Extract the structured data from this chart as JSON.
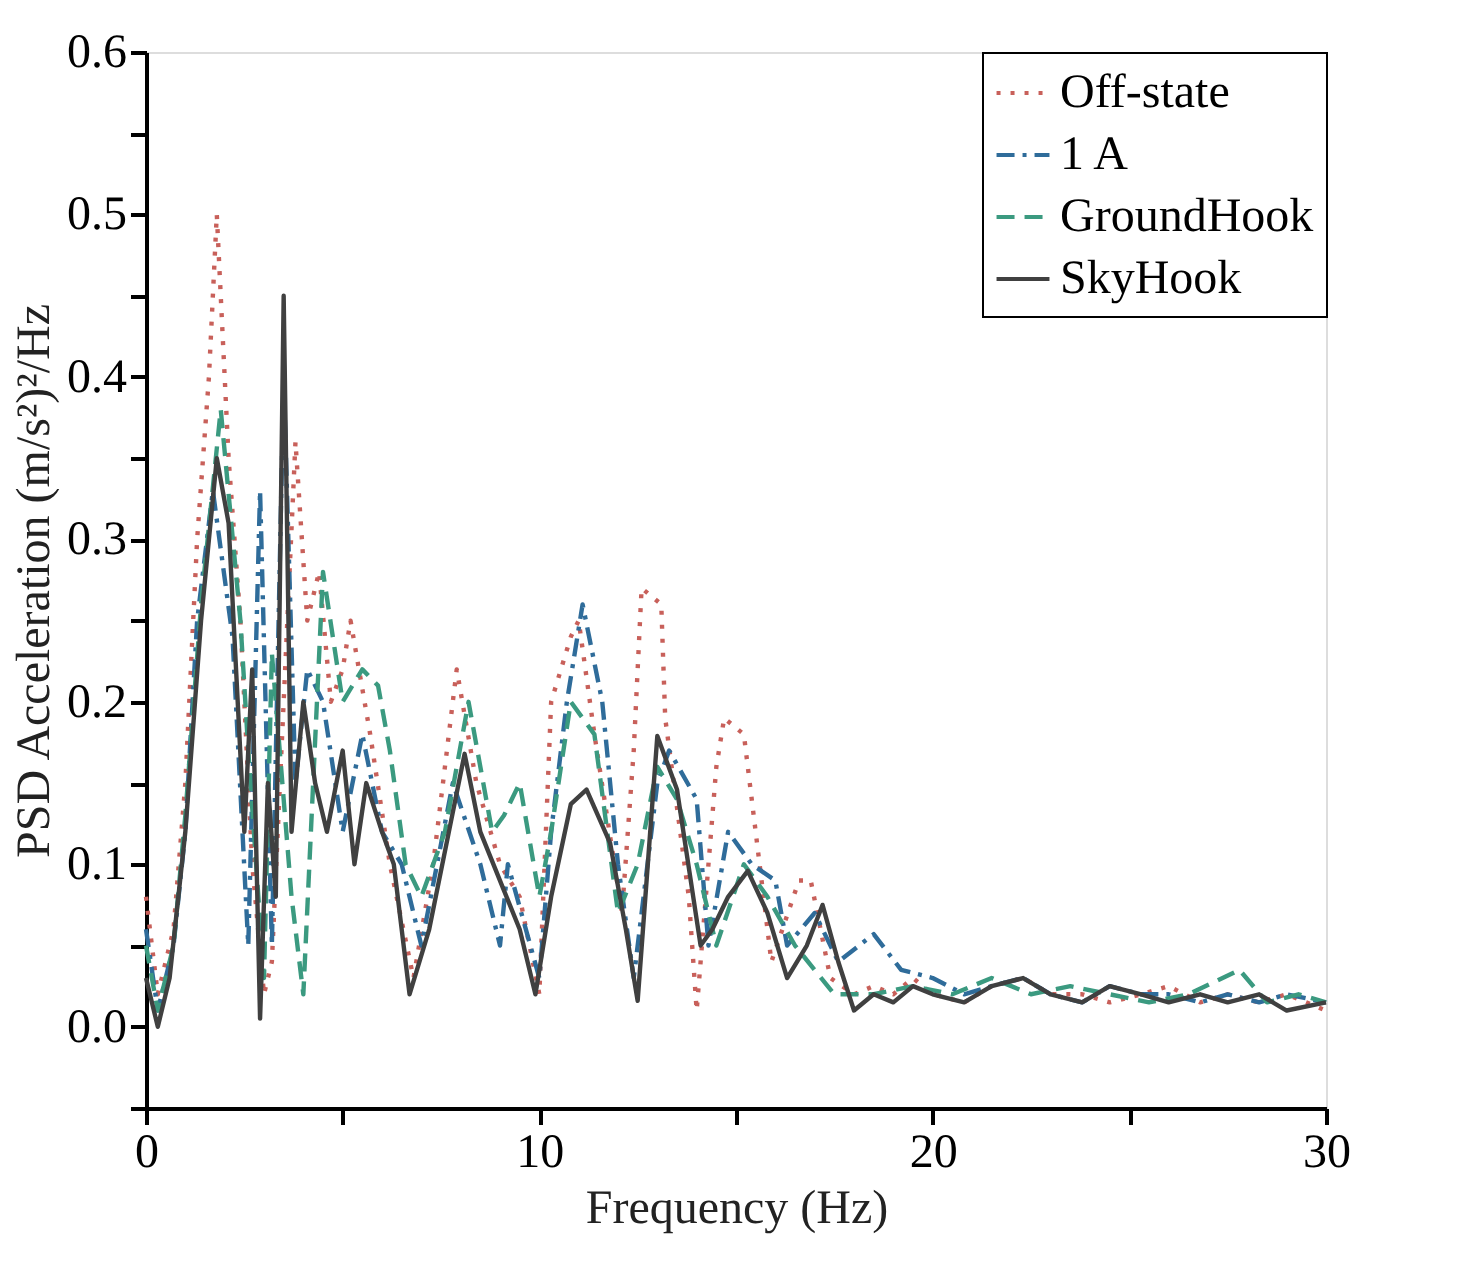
{
  "chart_data": {
    "type": "line",
    "xlabel": "Frequency (Hz)",
    "ylabel": "PSD Acceleration (m/s²)²/Hz",
    "xlim": [
      0,
      30
    ],
    "xticks": [
      0,
      {
        "value": 5,
        "label": null
      },
      10,
      {
        "value": 15,
        "label": null
      },
      20,
      {
        "value": 25,
        "label": null
      },
      30
    ],
    "ylim": [
      -0.05,
      0.6
    ],
    "yticks": [
      {
        "value": -0.05,
        "label": null
      },
      {
        "value": 0,
        "label": "0.0"
      },
      {
        "value": 0.05,
        "label": null
      },
      {
        "value": 0.1,
        "label": "0.1"
      },
      {
        "value": 0.15,
        "label": null
      },
      {
        "value": 0.2,
        "label": "0.2"
      },
      {
        "value": 0.25,
        "label": null
      },
      {
        "value": 0.3,
        "label": "0.3"
      },
      {
        "value": 0.35,
        "label": null
      },
      {
        "value": 0.4,
        "label": "0.4"
      },
      {
        "value": 0.45,
        "label": null
      },
      {
        "value": 0.5,
        "label": "0.5"
      },
      {
        "value": 0.55,
        "label": null
      },
      {
        "value": 0.6,
        "label": "0.6"
      }
    ],
    "grid": false,
    "legend": "top right",
    "marker": "none",
    "series": [
      {
        "name": "Off-state",
        "color": "#c8605a",
        "line_style": "dotted",
        "x": [
          0,
          0.3,
          0.7,
          1.0,
          1.3,
          1.6,
          1.8,
          2.1,
          2.4,
          2.7,
          3.0,
          3.2,
          3.5,
          3.8,
          4.1,
          4.4,
          4.7,
          5.0,
          5.2,
          5.7,
          6.2,
          6.8,
          7.3,
          7.9,
          8.4,
          9.0,
          9.5,
          10.0,
          10.3,
          10.8,
          11.0,
          11.4,
          12.1,
          12.4,
          12.6,
          13.1,
          13.2,
          13.8,
          14.0,
          14.5,
          14.7,
          15.2,
          15.9,
          16.6,
          16.9,
          17.4,
          18.0,
          18.5,
          19.0,
          19.5,
          20.0,
          20.8,
          21.5,
          22.3,
          23.0,
          23.8,
          24.5,
          25.3,
          26.0,
          26.8,
          27.5,
          28.3,
          29.0,
          30.0
        ],
        "values": [
          0.08,
          0.02,
          0.06,
          0.15,
          0.3,
          0.4,
          0.5,
          0.35,
          0.25,
          0.1,
          0.02,
          0.04,
          0.2,
          0.36,
          0.25,
          0.28,
          0.2,
          0.22,
          0.25,
          0.18,
          0.1,
          0.03,
          0.1,
          0.22,
          0.15,
          0.1,
          0.08,
          0.02,
          0.2,
          0.24,
          0.25,
          0.18,
          0.07,
          0.17,
          0.27,
          0.26,
          0.19,
          0.08,
          0.01,
          0.16,
          0.19,
          0.18,
          0.04,
          0.09,
          0.09,
          0.03,
          0.02,
          0.025,
          0.02,
          0.03,
          0.02,
          0.015,
          0.025,
          0.03,
          0.02,
          0.02,
          0.015,
          0.02,
          0.025,
          0.015,
          0.02,
          0.015,
          0.02,
          0.01
        ]
      },
      {
        "name": "1 A",
        "color": "#2f6c9a",
        "line_style": "dashdot",
        "x": [
          0,
          0.3,
          0.7,
          1.0,
          1.3,
          1.7,
          2.2,
          2.6,
          2.9,
          3.2,
          3.5,
          3.8,
          4.1,
          4.5,
          5.0,
          5.5,
          6.0,
          6.5,
          7.0,
          7.8,
          8.5,
          9.0,
          9.2,
          10.0,
          10.3,
          10.7,
          11.1,
          11.6,
          12.0,
          12.4,
          13.0,
          13.3,
          14.0,
          14.3,
          14.8,
          15.4,
          16.0,
          16.3,
          17.0,
          17.6,
          18.5,
          19.2,
          20.0,
          20.8,
          21.5,
          22.3,
          23.0,
          23.8,
          24.5,
          25.3,
          26.0,
          26.8,
          27.5,
          28.3,
          29.0,
          30.0
        ],
        "values": [
          0.06,
          0.01,
          0.05,
          0.12,
          0.25,
          0.33,
          0.24,
          0.05,
          0.33,
          0.05,
          0.4,
          0.15,
          0.22,
          0.2,
          0.12,
          0.18,
          0.12,
          0.1,
          0.05,
          0.15,
          0.1,
          0.05,
          0.1,
          0.03,
          0.12,
          0.2,
          0.26,
          0.2,
          0.1,
          0.03,
          0.15,
          0.17,
          0.14,
          0.05,
          0.12,
          0.1,
          0.09,
          0.05,
          0.07,
          0.04,
          0.057,
          0.035,
          0.03,
          0.02,
          0.025,
          0.03,
          0.02,
          0.015,
          0.025,
          0.02,
          0.02,
          0.015,
          0.02,
          0.015,
          0.02,
          0.015
        ]
      },
      {
        "name": "GroundHook",
        "color": "#3b9a80",
        "line_style": "dashed",
        "x": [
          0,
          0.3,
          0.7,
          1.0,
          1.4,
          1.9,
          2.4,
          2.6,
          3.0,
          3.2,
          3.7,
          4.0,
          4.5,
          5.0,
          5.5,
          5.9,
          6.2,
          6.6,
          7.0,
          7.6,
          8.2,
          8.8,
          9.1,
          9.5,
          10.0,
          10.3,
          10.8,
          11.4,
          12.0,
          12.5,
          13.0,
          13.5,
          14.0,
          14.5,
          15.2,
          15.8,
          16.5,
          17.5,
          18.5,
          19.5,
          20.5,
          21.5,
          22.5,
          23.5,
          24.5,
          25.5,
          26.5,
          27.8,
          28.5,
          29.3,
          30.0
        ],
        "values": [
          0.05,
          0.01,
          0.05,
          0.13,
          0.26,
          0.38,
          0.25,
          0.17,
          0.03,
          0.23,
          0.08,
          0.02,
          0.28,
          0.2,
          0.22,
          0.21,
          0.17,
          0.1,
          0.08,
          0.12,
          0.2,
          0.12,
          0.13,
          0.15,
          0.08,
          0.12,
          0.2,
          0.18,
          0.07,
          0.1,
          0.16,
          0.14,
          0.1,
          0.05,
          0.1,
          0.08,
          0.05,
          0.02,
          0.02,
          0.025,
          0.02,
          0.03,
          0.02,
          0.025,
          0.02,
          0.015,
          0.02,
          0.035,
          0.015,
          0.02,
          0.015
        ]
      },
      {
        "name": "SkyHook",
        "color": "#404040",
        "line_style": "solid",
        "x": [
          0,
          0.3,
          0.6,
          1.0,
          1.4,
          1.8,
          2.1,
          2.5,
          2.7,
          2.9,
          3.1,
          3.3,
          3.5,
          3.7,
          4.0,
          4.3,
          4.6,
          5.0,
          5.3,
          5.6,
          6.0,
          6.3,
          6.7,
          7.2,
          7.7,
          8.1,
          8.5,
          9.1,
          9.5,
          9.9,
          10.3,
          10.8,
          11.2,
          11.8,
          12.2,
          12.5,
          13.0,
          13.5,
          14.1,
          14.4,
          14.8,
          15.3,
          15.8,
          16.3,
          16.8,
          17.2,
          17.6,
          18.0,
          18.5,
          19.0,
          19.5,
          20.0,
          20.8,
          21.5,
          22.3,
          23.0,
          23.8,
          24.5,
          25.3,
          26.0,
          26.8,
          27.5,
          28.3,
          29.0,
          30.0
        ],
        "values": [
          0.03,
          0.0,
          0.03,
          0.12,
          0.25,
          0.35,
          0.31,
          0.12,
          0.22,
          0.005,
          0.15,
          0.08,
          0.45,
          0.12,
          0.2,
          0.15,
          0.12,
          0.17,
          0.1,
          0.15,
          0.12,
          0.1,
          0.02,
          0.06,
          0.12,
          0.168,
          0.12,
          0.084,
          0.06,
          0.02,
          0.08,
          0.137,
          0.146,
          0.113,
          0.06,
          0.016,
          0.179,
          0.146,
          0.05,
          0.06,
          0.08,
          0.096,
          0.07,
          0.03,
          0.05,
          0.075,
          0.04,
          0.01,
          0.02,
          0.015,
          0.025,
          0.02,
          0.015,
          0.025,
          0.03,
          0.02,
          0.015,
          0.025,
          0.02,
          0.015,
          0.02,
          0.015,
          0.02,
          0.01,
          0.015
        ]
      }
    ]
  }
}
